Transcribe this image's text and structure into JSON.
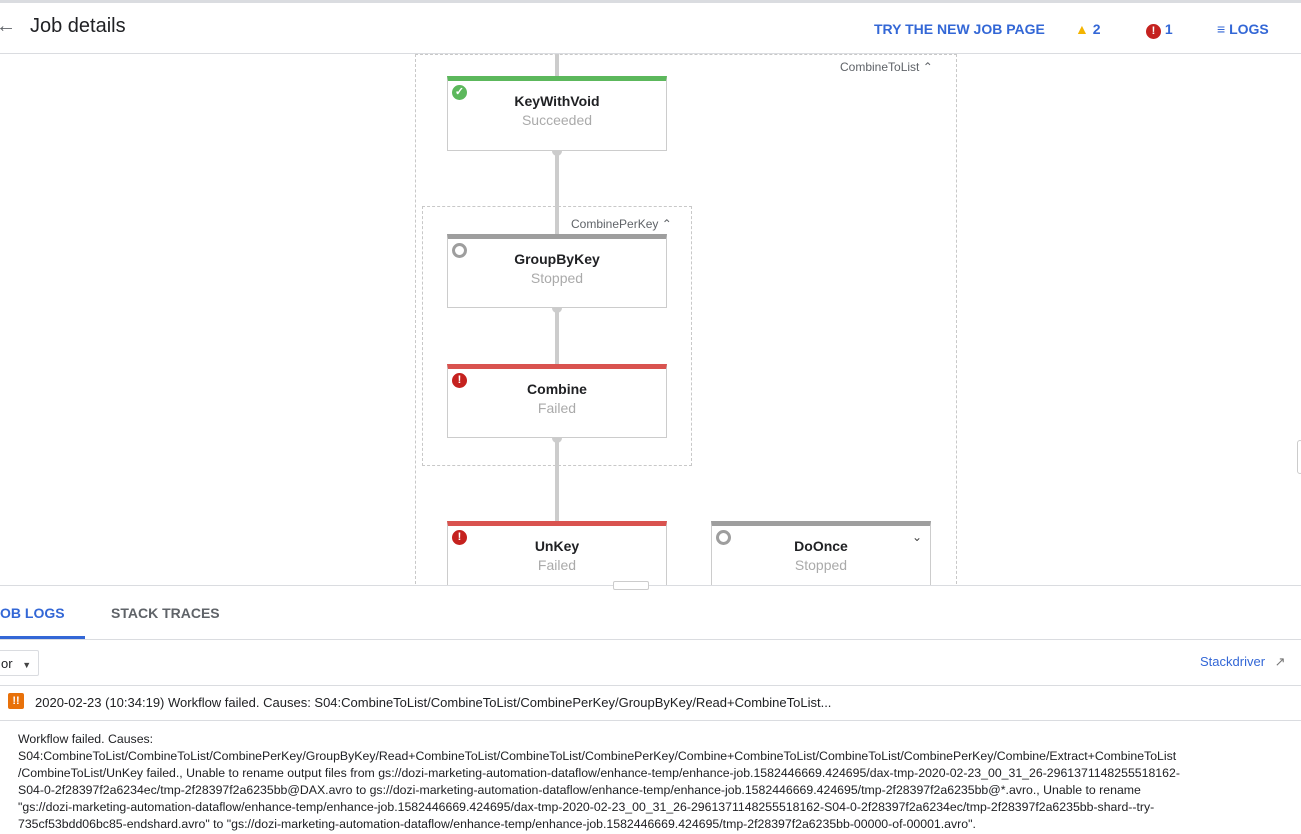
{
  "header": {
    "title": "Job details",
    "try_new": "TRY THE NEW JOB PAGE",
    "warnings": "2",
    "errors": "1",
    "logs": "LOGS"
  },
  "graph": {
    "outer_group": "CombineToList",
    "inner_group": "CombinePerKey",
    "nodes": [
      {
        "name": "KeyWithVoid",
        "status": "Succeeded"
      },
      {
        "name": "GroupByKey",
        "status": "Stopped"
      },
      {
        "name": "Combine",
        "status": "Failed"
      },
      {
        "name": "UnKey",
        "status": "Failed"
      },
      {
        "name": "DoOnce",
        "status": "Stopped"
      }
    ],
    "colors": {
      "succeeded": "#5cb85c",
      "stopped": "#9e9e9e",
      "failed": "#d9534f"
    }
  },
  "panel": {
    "tabs": [
      "OB LOGS",
      "STACK TRACES"
    ],
    "filter": "or",
    "stackdriver": "Stackdriver",
    "log_entry": "2020-02-23 (10:34:19) Workflow failed. Causes: S04:CombineToList/CombineToList/CombinePerKey/GroupByKey/Read+CombineToList...",
    "detail_lines": [
      "Workflow failed. Causes:",
      "S04:CombineToList/CombineToList/CombinePerKey/GroupByKey/Read+CombineToList/CombineToList/CombinePerKey/Combine+CombineToList/CombineToList/CombinePerKey/Combine/Extract+CombineToList",
      "/CombineToList/UnKey failed., Unable to rename output files from gs://dozi-marketing-automation-dataflow/enhance-temp/enhance-job.1582446669.424695/dax-tmp-2020-02-23_00_31_26-2961371148255518162-",
      "S04-0-2f28397f2a6234ec/tmp-2f28397f2a6235bb@DAX.avro to gs://dozi-marketing-automation-dataflow/enhance-temp/enhance-job.1582446669.424695/tmp-2f28397f2a6235bb@*.avro., Unable to rename",
      "\"gs://dozi-marketing-automation-dataflow/enhance-temp/enhance-job.1582446669.424695/dax-tmp-2020-02-23_00_31_26-2961371148255518162-S04-0-2f28397f2a6234ec/tmp-2f28397f2a6235bb-shard--try-",
      "735cf53bdd06bc85-endshard.avro\" to \"gs://dozi-marketing-automation-dataflow/enhance-temp/enhance-job.1582446669.424695/tmp-2f28397f2a6235bb-00000-of-00001.avro\"."
    ]
  }
}
